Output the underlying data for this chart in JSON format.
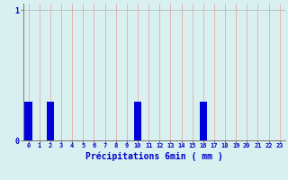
{
  "categories": [
    0,
    1,
    2,
    3,
    4,
    5,
    6,
    7,
    8,
    9,
    10,
    11,
    12,
    13,
    14,
    15,
    16,
    17,
    18,
    19,
    20,
    21,
    22,
    23
  ],
  "values": [
    0.3,
    0.0,
    0.3,
    0.0,
    0.0,
    0.0,
    0.0,
    0.0,
    0.0,
    0.0,
    0.3,
    0.0,
    0.0,
    0.0,
    0.0,
    0.0,
    0.3,
    0.0,
    0.0,
    0.0,
    0.0,
    0.0,
    0.0,
    0.0
  ],
  "bar_color": "#0000dd",
  "background_color": "#d8f0f0",
  "grid_color_h": "#b0b0b0",
  "grid_color_v": "#e8aaaa",
  "xlabel": "Précipitations 6min ( mm )",
  "xlabel_color": "#0000cc",
  "tick_color": "#0000cc",
  "ylim": [
    0,
    1.05
  ],
  "xlim": [
    -0.5,
    23.5
  ],
  "yticks": [
    0,
    1
  ],
  "ytick_labels": [
    "0",
    "1"
  ],
  "bar_width": 0.7
}
